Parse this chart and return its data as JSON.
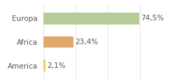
{
  "categories": [
    "Europa",
    "Africa",
    "America"
  ],
  "values": [
    74.5,
    23.4,
    2.1
  ],
  "labels": [
    "74,5%",
    "23,4%",
    "2,1%"
  ],
  "bar_colors": [
    "#b5cc96",
    "#dfa96e",
    "#e8d44d"
  ],
  "background_color": "#ffffff",
  "xlim": [
    0,
    100
  ],
  "bar_height": 0.5,
  "label_fontsize": 7.5,
  "ytick_fontsize": 7.5,
  "grid_color": "#e0e0e0",
  "spine_color": "#cccccc"
}
